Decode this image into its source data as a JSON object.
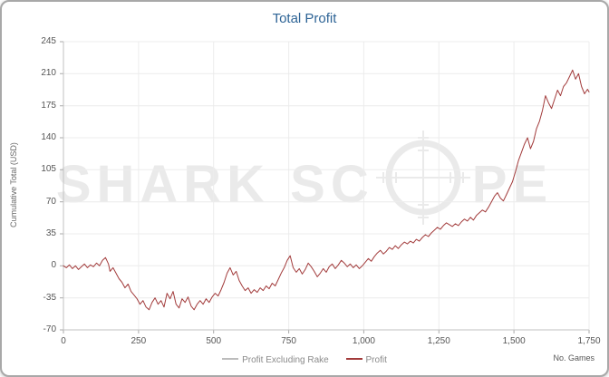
{
  "header": {
    "title": "Total Profit"
  },
  "axes": {
    "y_label": "Cumulative Total (USD)",
    "x_label": "No. Games"
  },
  "watermark": {
    "left": "SHARK SC",
    "right": "PE"
  },
  "legend": [
    {
      "label": "Profit Excluding Rake",
      "color": "#bcbcbc"
    },
    {
      "label": "Profit",
      "color": "#a23b3b"
    }
  ],
  "colors": {
    "title": "#2e6496",
    "line": "#a23b3b",
    "grid": "#ececec",
    "axis": "#c2c2c2",
    "tick": "#aaaaaa",
    "tick_text": "#555555",
    "watermark": "#eaeaea"
  },
  "chart_data": {
    "type": "line",
    "title": "Total Profit",
    "xlabel": "No. Games",
    "ylabel": "Cumulative Total (USD)",
    "xlim": [
      0,
      1750
    ],
    "ylim": [
      -70,
      245
    ],
    "grid": true,
    "legend_position": "bottom",
    "xticks": {
      "values": [
        0,
        250,
        500,
        750,
        1000,
        1250,
        1500,
        1750
      ],
      "labels": [
        "0",
        "250",
        "500",
        "750",
        "1,000",
        "1,250",
        "1,500",
        "1,750"
      ]
    },
    "yticks": {
      "values": [
        -70,
        -35,
        0,
        35,
        70,
        105,
        140,
        175,
        210,
        245
      ],
      "labels": [
        "-70",
        "-35",
        "0",
        "35",
        "70",
        "105",
        "140",
        "175",
        "210",
        "245"
      ]
    },
    "legend_entries": [
      "Profit Excluding Rake",
      "Profit"
    ],
    "series": [
      {
        "name": "Profit",
        "color": "#a23b3b",
        "points": [
          [
            0,
            0
          ],
          [
            10,
            -2
          ],
          [
            20,
            1
          ],
          [
            30,
            -3
          ],
          [
            40,
            0
          ],
          [
            50,
            -4
          ],
          [
            60,
            -1
          ],
          [
            70,
            2
          ],
          [
            80,
            -2
          ],
          [
            90,
            1
          ],
          [
            100,
            -1
          ],
          [
            110,
            3
          ],
          [
            120,
            0
          ],
          [
            130,
            6
          ],
          [
            140,
            9
          ],
          [
            150,
            2
          ],
          [
            155,
            -6
          ],
          [
            165,
            -2
          ],
          [
            175,
            -8
          ],
          [
            185,
            -14
          ],
          [
            195,
            -18
          ],
          [
            205,
            -24
          ],
          [
            215,
            -20
          ],
          [
            225,
            -28
          ],
          [
            235,
            -32
          ],
          [
            245,
            -36
          ],
          [
            255,
            -42
          ],
          [
            265,
            -38
          ],
          [
            275,
            -45
          ],
          [
            285,
            -48
          ],
          [
            295,
            -40
          ],
          [
            305,
            -35
          ],
          [
            315,
            -42
          ],
          [
            325,
            -38
          ],
          [
            335,
            -45
          ],
          [
            345,
            -30
          ],
          [
            355,
            -36
          ],
          [
            365,
            -28
          ],
          [
            375,
            -42
          ],
          [
            385,
            -46
          ],
          [
            395,
            -36
          ],
          [
            405,
            -40
          ],
          [
            415,
            -34
          ],
          [
            425,
            -44
          ],
          [
            435,
            -48
          ],
          [
            445,
            -42
          ],
          [
            455,
            -38
          ],
          [
            465,
            -42
          ],
          [
            475,
            -36
          ],
          [
            485,
            -40
          ],
          [
            495,
            -34
          ],
          [
            505,
            -30
          ],
          [
            515,
            -33
          ],
          [
            525,
            -26
          ],
          [
            535,
            -18
          ],
          [
            545,
            -8
          ],
          [
            555,
            -2
          ],
          [
            565,
            -10
          ],
          [
            575,
            -6
          ],
          [
            585,
            -16
          ],
          [
            595,
            -22
          ],
          [
            605,
            -27
          ],
          [
            615,
            -24
          ],
          [
            625,
            -30
          ],
          [
            635,
            -26
          ],
          [
            645,
            -29
          ],
          [
            655,
            -24
          ],
          [
            665,
            -27
          ],
          [
            675,
            -22
          ],
          [
            685,
            -25
          ],
          [
            695,
            -19
          ],
          [
            705,
            -22
          ],
          [
            715,
            -15
          ],
          [
            725,
            -8
          ],
          [
            735,
            -2
          ],
          [
            745,
            6
          ],
          [
            755,
            11
          ],
          [
            765,
            -2
          ],
          [
            775,
            -7
          ],
          [
            785,
            -3
          ],
          [
            795,
            -9
          ],
          [
            805,
            -4
          ],
          [
            815,
            3
          ],
          [
            825,
            -1
          ],
          [
            835,
            -6
          ],
          [
            845,
            -12
          ],
          [
            855,
            -8
          ],
          [
            865,
            -3
          ],
          [
            875,
            -7
          ],
          [
            885,
            -1
          ],
          [
            895,
            2
          ],
          [
            905,
            -3
          ],
          [
            915,
            1
          ],
          [
            925,
            6
          ],
          [
            935,
            3
          ],
          [
            945,
            -1
          ],
          [
            955,
            2
          ],
          [
            965,
            -2
          ],
          [
            975,
            1
          ],
          [
            985,
            -3
          ],
          [
            995,
            0
          ],
          [
            1005,
            4
          ],
          [
            1015,
            8
          ],
          [
            1025,
            5
          ],
          [
            1035,
            10
          ],
          [
            1045,
            14
          ],
          [
            1055,
            17
          ],
          [
            1065,
            13
          ],
          [
            1075,
            16
          ],
          [
            1085,
            20
          ],
          [
            1095,
            18
          ],
          [
            1105,
            22
          ],
          [
            1115,
            19
          ],
          [
            1125,
            23
          ],
          [
            1135,
            26
          ],
          [
            1145,
            24
          ],
          [
            1155,
            27
          ],
          [
            1165,
            25
          ],
          [
            1175,
            29
          ],
          [
            1185,
            27
          ],
          [
            1195,
            31
          ],
          [
            1205,
            34
          ],
          [
            1215,
            32
          ],
          [
            1225,
            36
          ],
          [
            1235,
            39
          ],
          [
            1245,
            42
          ],
          [
            1255,
            40
          ],
          [
            1265,
            44
          ],
          [
            1275,
            47
          ],
          [
            1285,
            45
          ],
          [
            1295,
            43
          ],
          [
            1305,
            46
          ],
          [
            1315,
            44
          ],
          [
            1325,
            48
          ],
          [
            1335,
            51
          ],
          [
            1345,
            49
          ],
          [
            1355,
            53
          ],
          [
            1365,
            50
          ],
          [
            1375,
            55
          ],
          [
            1385,
            58
          ],
          [
            1395,
            61
          ],
          [
            1405,
            59
          ],
          [
            1415,
            64
          ],
          [
            1425,
            70
          ],
          [
            1435,
            76
          ],
          [
            1445,
            80
          ],
          [
            1455,
            74
          ],
          [
            1465,
            71
          ],
          [
            1475,
            78
          ],
          [
            1485,
            85
          ],
          [
            1495,
            92
          ],
          [
            1505,
            103
          ],
          [
            1515,
            115
          ],
          [
            1525,
            124
          ],
          [
            1535,
            133
          ],
          [
            1545,
            140
          ],
          [
            1555,
            128
          ],
          [
            1565,
            136
          ],
          [
            1575,
            150
          ],
          [
            1585,
            158
          ],
          [
            1595,
            170
          ],
          [
            1605,
            186
          ],
          [
            1615,
            178
          ],
          [
            1625,
            172
          ],
          [
            1635,
            182
          ],
          [
            1645,
            192
          ],
          [
            1655,
            186
          ],
          [
            1665,
            196
          ],
          [
            1675,
            200
          ],
          [
            1685,
            207
          ],
          [
            1695,
            214
          ],
          [
            1705,
            204
          ],
          [
            1715,
            210
          ],
          [
            1725,
            196
          ],
          [
            1735,
            188
          ],
          [
            1745,
            193
          ],
          [
            1750,
            190
          ]
        ]
      }
    ]
  }
}
